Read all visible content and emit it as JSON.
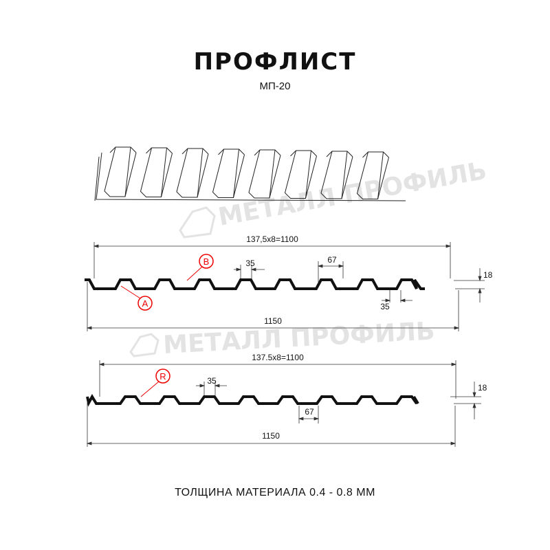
{
  "header": {
    "title": "ПРОФЛИСТ",
    "subtitle": "МП-20"
  },
  "watermark": "МЕТАЛЛ ПРОФИЛЬ",
  "colors": {
    "profile": "#111111",
    "callout": "#e00000",
    "watermark": "#e3e3e3",
    "dimension": "#333333"
  },
  "profile_1": {
    "pitch_dim": "137,5x8=1100",
    "total_dim": "1150",
    "rib_top": "35",
    "rib_bottom": "35",
    "rib_base": "67",
    "height": "18",
    "callouts": [
      "A",
      "B"
    ]
  },
  "profile_2": {
    "pitch_dim": "137.5x8=1100",
    "total_dim": "1150",
    "rib_top": "35",
    "rib_base": "67",
    "height": "18",
    "callouts": [
      "R"
    ]
  },
  "footer": {
    "thickness": "ТОЛЩИНА МАТЕРИАЛА 0.4 - 0.8 ММ"
  }
}
